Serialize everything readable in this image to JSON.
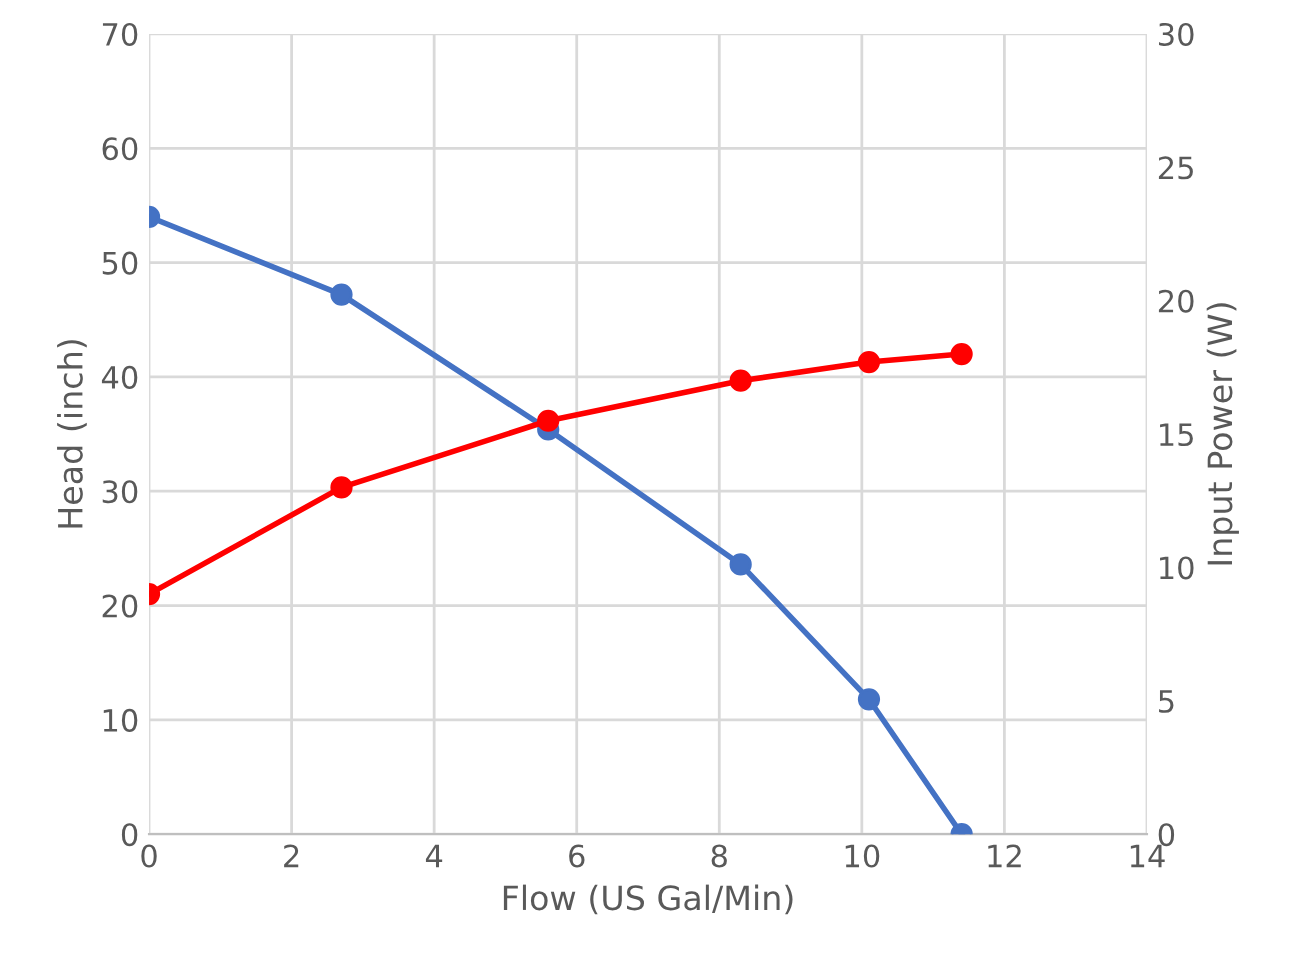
{
  "chart_data": {
    "type": "line",
    "xlabel": "Flow (US Gal/Min)",
    "ylabel": "Head (inch)",
    "y2label": "Input Power (W)",
    "series": [
      {
        "color": "#4472c4",
        "x": [
          0,
          2.7,
          5.6,
          8.3,
          10.1,
          11.4
        ],
        "values": [
          54,
          47.2,
          35.4,
          23.6,
          11.8,
          0
        ]
      },
      {
        "color": "#ff0000",
        "axis": "y2",
        "x": [
          0,
          2.7,
          5.6,
          8.3,
          10.1,
          11.4
        ],
        "values": [
          9,
          13,
          15.5,
          17,
          17.7,
          18
        ]
      }
    ],
    "xlim": [
      0,
      14
    ],
    "xticks": [
      0,
      2,
      4,
      6,
      8,
      10,
      12,
      14
    ],
    "ylim": [
      0,
      70
    ],
    "yticks": [
      0,
      10,
      20,
      30,
      40,
      50,
      60,
      70
    ],
    "y2lim": [
      0,
      30
    ],
    "y2ticks": [
      0,
      5,
      10,
      15,
      20,
      25,
      30
    ],
    "grid": true,
    "marker": "circle",
    "line_style": "solid"
  }
}
